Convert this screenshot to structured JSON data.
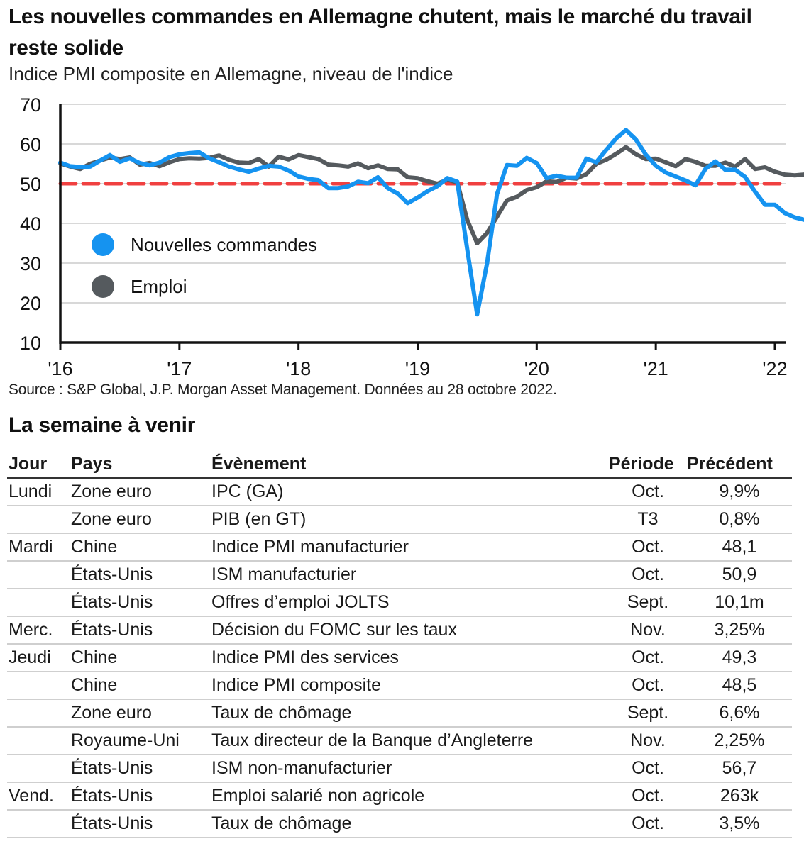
{
  "header": {
    "title": "Les nouvelles commandes en Allemagne chutent, mais le marché du travail reste solide",
    "subtitle": "Indice PMI composite en Allemagne, niveau de l'indice"
  },
  "chart_data": {
    "type": "line",
    "title": "Les nouvelles commandes en Allemagne chutent, mais le marché du travail reste solide",
    "subtitle": "Indice PMI composite en Allemagne, niveau de l'indice",
    "xlabel": "",
    "ylabel": "",
    "ylim": [
      10,
      70
    ],
    "yticks": [
      10,
      20,
      30,
      40,
      50,
      60,
      70
    ],
    "ytick_labels": [
      "10",
      "20",
      "30",
      "40",
      "50",
      "60",
      "70"
    ],
    "xlim": [
      2016.0,
      2022.0
    ],
    "xticks": [
      2016,
      2017,
      2018,
      2019,
      2020,
      2021,
      2022
    ],
    "xtick_labels": [
      "'16",
      "'17",
      "'18",
      "'19",
      "'20",
      "'21",
      "'22"
    ],
    "grid": true,
    "legend": {
      "position": "left",
      "entries": [
        "Nouvelles commandes",
        "Emploi"
      ]
    },
    "reference_line": {
      "value": 50,
      "color": "#f04040",
      "style": "dashed"
    },
    "x_start": "2016-01",
    "x_step": "monthly",
    "series": [
      {
        "name": "Nouvelles commandes",
        "color": "#1593f0",
        "values": [
          55.3,
          54.4,
          54.2,
          54.3,
          55.8,
          57.2,
          55.5,
          56.4,
          55.2,
          54.6,
          55.3,
          56.7,
          57.4,
          57.7,
          57.9,
          56.4,
          55.4,
          54.3,
          53.6,
          53.0,
          53.8,
          54.5,
          54.3,
          53.3,
          51.8,
          51.2,
          50.9,
          48.9,
          48.9,
          49.3,
          50.5,
          50.1,
          51.6,
          48.9,
          47.5,
          45.1,
          46.5,
          48.1,
          49.4,
          51.4,
          50.5,
          33.5,
          17.1,
          30.0,
          47.4,
          54.7,
          54.5,
          56.5,
          55.2,
          51.4,
          52.0,
          51.5,
          51.5,
          56.3,
          55.4,
          58.5,
          61.4,
          63.5,
          61.1,
          57.3,
          54.5,
          52.8,
          51.8,
          50.8,
          49.6,
          53.7,
          55.6,
          53.5,
          53.5,
          51.7,
          48.0,
          44.7,
          44.7,
          42.6,
          41.5,
          40.9
        ]
      },
      {
        "name": "Emploi",
        "color": "#555a5e",
        "values": [
          55.1,
          54.3,
          53.7,
          55.0,
          55.8,
          56.6,
          56.2,
          56.6,
          54.8,
          55.2,
          54.4,
          55.4,
          56.2,
          56.4,
          56.3,
          56.5,
          57.1,
          56.0,
          55.3,
          55.2,
          56.2,
          54.3,
          56.8,
          56.1,
          57.2,
          56.7,
          56.2,
          54.8,
          54.6,
          54.3,
          55.1,
          53.9,
          54.6,
          53.7,
          53.6,
          51.6,
          51.4,
          50.6,
          50.0,
          51.0,
          50.3,
          40.9,
          35.0,
          37.6,
          41.7,
          45.8,
          46.7,
          48.4,
          49.1,
          50.6,
          50.4,
          51.5,
          51.3,
          52.4,
          55.0,
          56.0,
          57.5,
          59.2,
          57.4,
          56.2,
          56.3,
          55.4,
          54.4,
          56.2,
          55.5,
          54.5,
          54.5,
          55.3,
          54.3,
          56.2,
          53.7,
          54.1,
          53.0,
          52.3,
          52.1,
          52.3
        ]
      }
    ]
  },
  "footer": {
    "source": "Source : S&P Global, J.P. Morgan Asset Management.  Données au 28 octobre 2022."
  },
  "events": {
    "title": "La semaine à venir",
    "columns": [
      "Jour",
      "Pays",
      "Évènement",
      "Période",
      "Précédent"
    ],
    "rows": [
      {
        "day": "Lundi",
        "country": "Zone euro",
        "event": "IPC (GA)",
        "period": "Oct.",
        "previous": "9,9%"
      },
      {
        "day": "",
        "country": "Zone euro",
        "event": "PIB (en GT)",
        "period": "T3",
        "previous": "0,8%"
      },
      {
        "day": "Mardi",
        "country": "Chine",
        "event": "Indice PMI manufacturier",
        "period": "Oct.",
        "previous": "48,1"
      },
      {
        "day": "",
        "country": "États-Unis",
        "event": "ISM manufacturier",
        "period": "Oct.",
        "previous": "50,9"
      },
      {
        "day": "",
        "country": "États-Unis",
        "event": "Offres d’emploi JOLTS",
        "period": "Sept.",
        "previous": "10,1m"
      },
      {
        "day": "Merc.",
        "country": "États-Unis",
        "event": "Décision du FOMC sur les taux",
        "period": "Nov.",
        "previous": "3,25%"
      },
      {
        "day": "Jeudi",
        "country": "Chine",
        "event": "Indice PMI des services",
        "period": "Oct.",
        "previous": "49,3"
      },
      {
        "day": "",
        "country": "Chine",
        "event": "Indice PMI composite",
        "period": "Oct.",
        "previous": "48,5"
      },
      {
        "day": "",
        "country": "Zone euro",
        "event": "Taux de chômage",
        "period": "Sept.",
        "previous": "6,6%"
      },
      {
        "day": "",
        "country": "Royaume-Uni",
        "event": "Taux directeur de la Banque d’Angleterre",
        "period": "Nov.",
        "previous": "2,25%"
      },
      {
        "day": "",
        "country": "États-Unis",
        "event": "ISM non-manufacturier",
        "period": "Oct.",
        "previous": "56,7"
      },
      {
        "day": "Vend.",
        "country": "États-Unis",
        "event": "Emploi salarié non agricole",
        "period": "Oct.",
        "previous": "263k"
      },
      {
        "day": "",
        "country": "États-Unis",
        "event": "Taux de chômage",
        "period": "Oct.",
        "previous": "3,5%"
      }
    ]
  }
}
